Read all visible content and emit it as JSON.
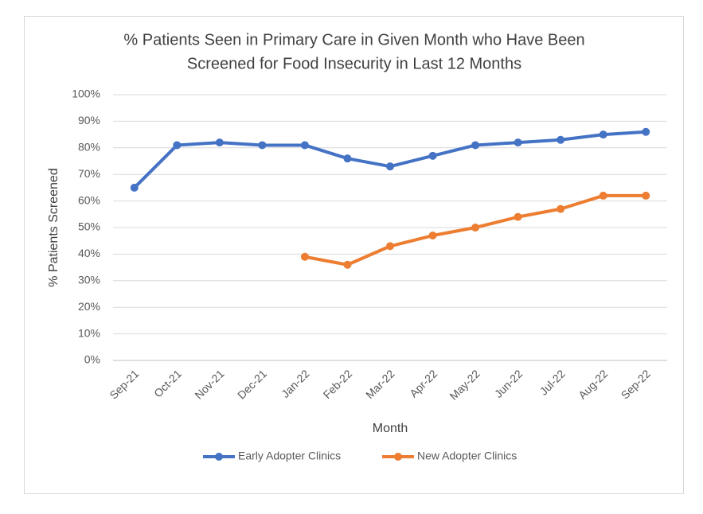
{
  "chart_data": {
    "type": "line",
    "title": [
      "% Patients Seen in Primary Care in Given Month who Have Been",
      "Screened for Food Insecurity in Last 12 Months"
    ],
    "x_label": "Month",
    "y_label": "% Patients Screened",
    "categories": [
      "Sep-21",
      "Oct-21",
      "Nov-21",
      "Dec-21",
      "Jan-22",
      "Feb-22",
      "Mar-22",
      "Apr-22",
      "May-22",
      "Jun-22",
      "Jul-22",
      "Aug-22",
      "Sep-22"
    ],
    "series": [
      {
        "name": "Early Adopter Clinics",
        "color": "#4472c4",
        "values": [
          65,
          81,
          82,
          81,
          81,
          76,
          73,
          77,
          81,
          82,
          83,
          85,
          86
        ]
      },
      {
        "name": "New Adopter Clinics",
        "color": "#ed7d31",
        "values": [
          null,
          null,
          null,
          null,
          39,
          36,
          43,
          47,
          50,
          54,
          57,
          62,
          62
        ]
      }
    ],
    "ylim": [
      0,
      100
    ],
    "yticks": [
      {
        "value": 0,
        "label": "0%"
      },
      {
        "value": 10,
        "label": "10%"
      },
      {
        "value": 20,
        "label": "20%"
      },
      {
        "value": 30,
        "label": "30%"
      },
      {
        "value": 40,
        "label": "40%"
      },
      {
        "value": 50,
        "label": "50%"
      },
      {
        "value": 60,
        "label": "60%"
      },
      {
        "value": 70,
        "label": "70%"
      },
      {
        "value": 80,
        "label": "80%"
      },
      {
        "value": 90,
        "label": "90%"
      },
      {
        "value": 100,
        "label": "100%"
      }
    ],
    "grid": true,
    "legend": "bottom"
  }
}
